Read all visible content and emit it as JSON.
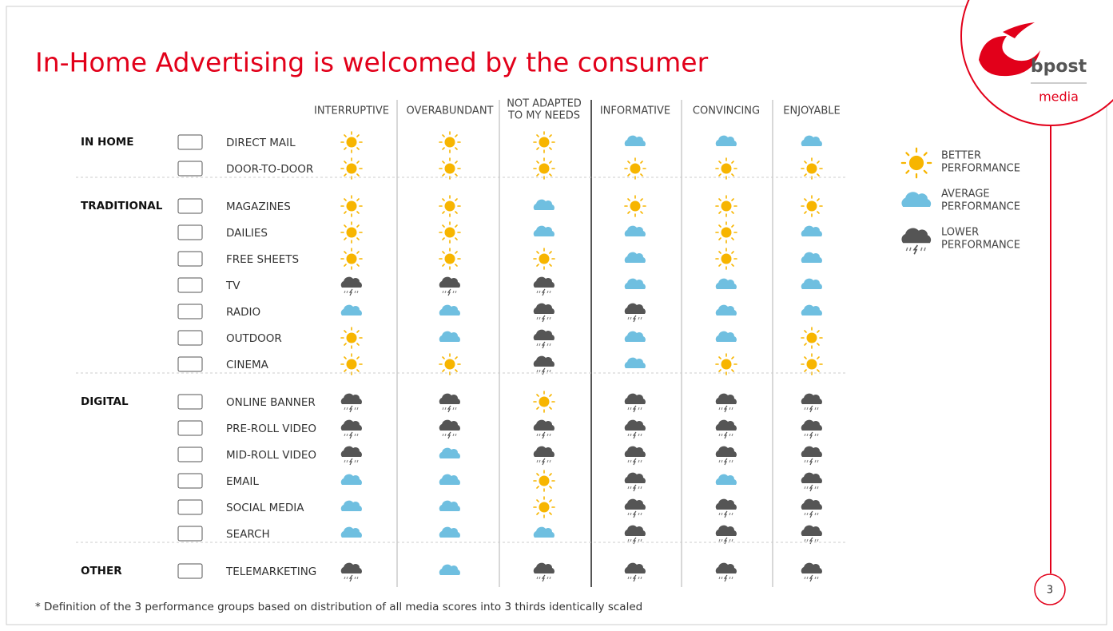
{
  "title": "In-Home Advertising is welcomed by the consumer",
  "logo": {
    "brand": "bpost",
    "sub": "media"
  },
  "page_number": "3",
  "columns": [
    [
      "INTERRUPTIVE"
    ],
    [
      "OVERABUNDANT"
    ],
    [
      "NOT ADAPTED",
      "TO MY NEEDS"
    ],
    [
      "INFORMATIVE"
    ],
    [
      "CONVINCING"
    ],
    [
      "ENJOYABLE"
    ]
  ],
  "legend": [
    [
      "BETTER",
      "PERFORMANCE"
    ],
    [
      "AVERAGE",
      "PERFORMANCE"
    ],
    [
      "LOWER",
      "PERFORMANCE"
    ]
  ],
  "groups": [
    {
      "name": "IN HOME",
      "rows": [
        {
          "label": "DIRECT MAIL",
          "ratings": [
            0,
            0,
            0,
            1,
            1,
            1
          ]
        },
        {
          "label": "DOOR-TO-DOOR",
          "ratings": [
            0,
            0,
            0,
            0,
            0,
            0
          ]
        }
      ]
    },
    {
      "name": "TRADITIONAL",
      "rows": [
        {
          "label": "MAGAZINES",
          "ratings": [
            0,
            0,
            1,
            0,
            0,
            0
          ]
        },
        {
          "label": "DAILIES",
          "ratings": [
            0,
            0,
            1,
            1,
            0,
            1
          ]
        },
        {
          "label": "FREE SHEETS",
          "ratings": [
            0,
            0,
            0,
            1,
            0,
            1
          ]
        },
        {
          "label": "TV",
          "ratings": [
            2,
            2,
            2,
            1,
            1,
            1
          ]
        },
        {
          "label": "RADIO",
          "ratings": [
            1,
            1,
            2,
            2,
            1,
            1
          ]
        },
        {
          "label": "OUTDOOR",
          "ratings": [
            0,
            1,
            2,
            1,
            1,
            0
          ]
        },
        {
          "label": "CINEMA",
          "ratings": [
            0,
            0,
            2,
            1,
            0,
            0
          ]
        }
      ]
    },
    {
      "name": "DIGITAL",
      "rows": [
        {
          "label": "ONLINE BANNER",
          "ratings": [
            2,
            2,
            0,
            2,
            2,
            2
          ]
        },
        {
          "label": "PRE-ROLL VIDEO",
          "ratings": [
            2,
            2,
            2,
            2,
            2,
            2
          ]
        },
        {
          "label": "MID-ROLL VIDEO",
          "ratings": [
            2,
            1,
            2,
            2,
            2,
            2
          ]
        },
        {
          "label": "EMAIL",
          "ratings": [
            1,
            1,
            0,
            2,
            1,
            2
          ]
        },
        {
          "label": "SOCIAL MEDIA",
          "ratings": [
            1,
            1,
            0,
            2,
            2,
            2
          ]
        },
        {
          "label": "SEARCH",
          "ratings": [
            1,
            1,
            1,
            2,
            2,
            2
          ]
        }
      ]
    },
    {
      "name": "OTHER",
      "rows": [
        {
          "label": "TELEMARKETING",
          "ratings": [
            2,
            1,
            2,
            2,
            2,
            2
          ]
        }
      ]
    }
  ],
  "footnote": "* Definition of the 3 performance groups based on distribution of all media scores into 3 thirds identically scaled"
}
